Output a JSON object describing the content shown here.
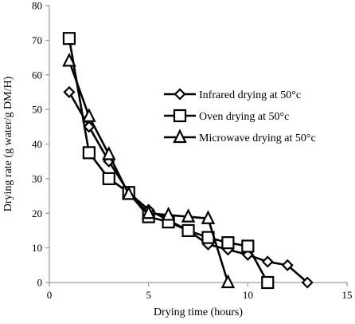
{
  "chart_data": {
    "type": "line",
    "xlabel": "Drying time (hours)",
    "ylabel": "Drying rate (g water/g DM/H)",
    "xlim": [
      0,
      15
    ],
    "ylim": [
      0,
      80
    ],
    "xticks": [
      0,
      5,
      10,
      15
    ],
    "yticks": [
      0,
      10,
      20,
      30,
      40,
      50,
      60,
      70,
      80
    ],
    "grid": false,
    "legend_position": "right",
    "series": [
      {
        "name": "Infrared drying at  50°c",
        "marker": "diamond",
        "x": [
          1,
          2,
          3,
          4,
          5,
          6,
          7,
          8,
          9,
          10,
          11,
          12,
          13
        ],
        "y": [
          55,
          45,
          35,
          26,
          21,
          18,
          15,
          11,
          9.5,
          8,
          6,
          5,
          0
        ]
      },
      {
        "name": "Oven drying at 50°c",
        "marker": "square",
        "x": [
          1,
          2,
          3,
          4,
          5,
          6,
          7,
          8,
          9,
          10,
          11
        ],
        "y": [
          70.5,
          37.5,
          30,
          26,
          19,
          17.5,
          15,
          13,
          11.5,
          10.5,
          0
        ]
      },
      {
        "name": "Microwave drying at 50°c",
        "marker": "triangle",
        "x": [
          1,
          2,
          3,
          4,
          5,
          6,
          7,
          8,
          9
        ],
        "y": [
          64,
          48,
          37,
          25.5,
          20,
          19.5,
          19,
          18.5,
          0
        ]
      }
    ]
  }
}
